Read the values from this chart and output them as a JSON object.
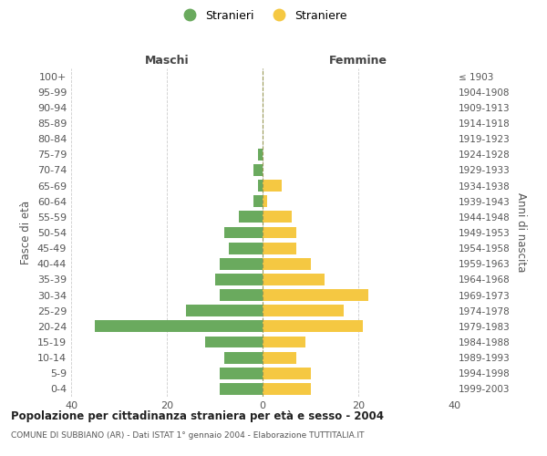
{
  "age_groups": [
    "0-4",
    "5-9",
    "10-14",
    "15-19",
    "20-24",
    "25-29",
    "30-34",
    "35-39",
    "40-44",
    "45-49",
    "50-54",
    "55-59",
    "60-64",
    "65-69",
    "70-74",
    "75-79",
    "80-84",
    "85-89",
    "90-94",
    "95-99",
    "100+"
  ],
  "birth_years": [
    "1999-2003",
    "1994-1998",
    "1989-1993",
    "1984-1988",
    "1979-1983",
    "1974-1978",
    "1969-1973",
    "1964-1968",
    "1959-1963",
    "1954-1958",
    "1949-1953",
    "1944-1948",
    "1939-1943",
    "1934-1938",
    "1929-1933",
    "1924-1928",
    "1919-1923",
    "1914-1918",
    "1909-1913",
    "1904-1908",
    "≤ 1903"
  ],
  "maschi": [
    9,
    9,
    8,
    12,
    35,
    16,
    9,
    10,
    9,
    7,
    8,
    5,
    2,
    1,
    2,
    1,
    0,
    0,
    0,
    0,
    0
  ],
  "femmine": [
    10,
    10,
    7,
    9,
    21,
    17,
    22,
    13,
    10,
    7,
    7,
    6,
    1,
    4,
    0,
    0,
    0,
    0,
    0,
    0,
    0
  ],
  "color_maschi": "#6aaa5e",
  "color_femmine": "#f5c842",
  "xlim": 40,
  "title": "Popolazione per cittadinanza straniera per età e sesso - 2004",
  "subtitle": "COMUNE DI SUBBIANO (AR) - Dati ISTAT 1° gennaio 2004 - Elaborazione TUTTITALIA.IT",
  "ylabel_left": "Fasce di età",
  "ylabel_right": "Anni di nascita",
  "label_maschi": "Stranieri",
  "label_femmine": "Straniere",
  "header_left": "Maschi",
  "header_right": "Femmine",
  "bg_color": "#ffffff",
  "grid_color": "#cccccc"
}
